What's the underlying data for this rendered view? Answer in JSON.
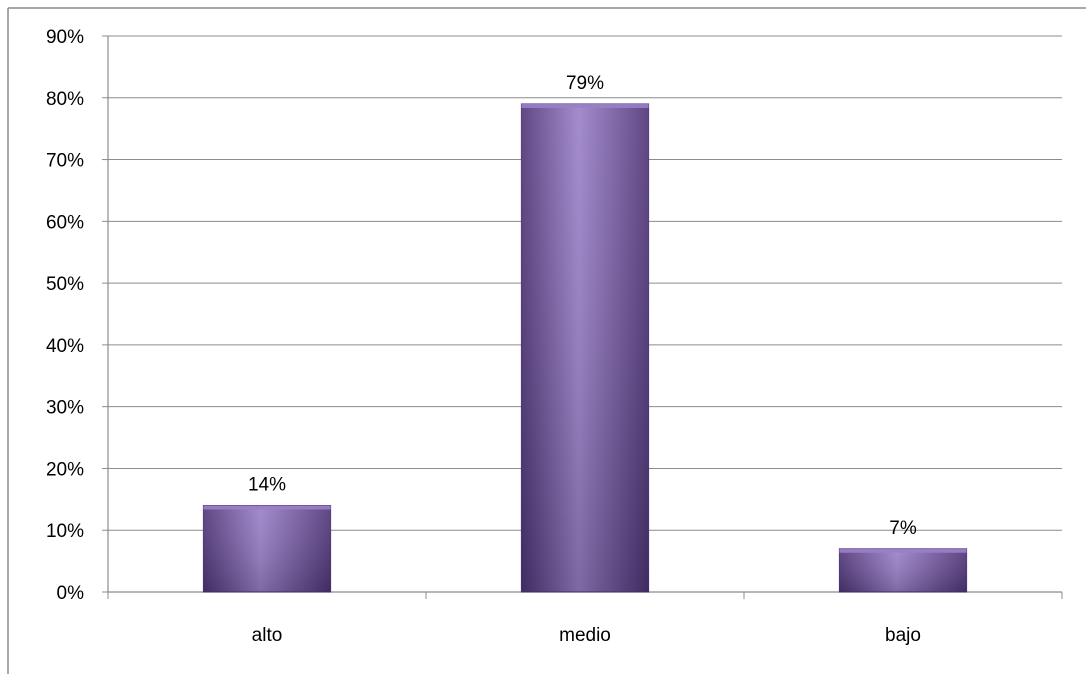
{
  "chart_data": {
    "type": "bar",
    "categories": [
      "alto",
      "medio",
      "bajo"
    ],
    "values": [
      14,
      79,
      7
    ],
    "data_labels": [
      "14%",
      "79%",
      "7%"
    ],
    "y_ticks": [
      "0%",
      "10%",
      "20%",
      "30%",
      "40%",
      "50%",
      "60%",
      "70%",
      "80%",
      "90%"
    ],
    "ylim": [
      0,
      90
    ],
    "grid": true,
    "legend": "none",
    "bar_color": "#7a5aa6",
    "bar_highlight": "#9a80c8",
    "bar_shadow": "#4e3477",
    "gridline_color": "#8c8c8c"
  }
}
